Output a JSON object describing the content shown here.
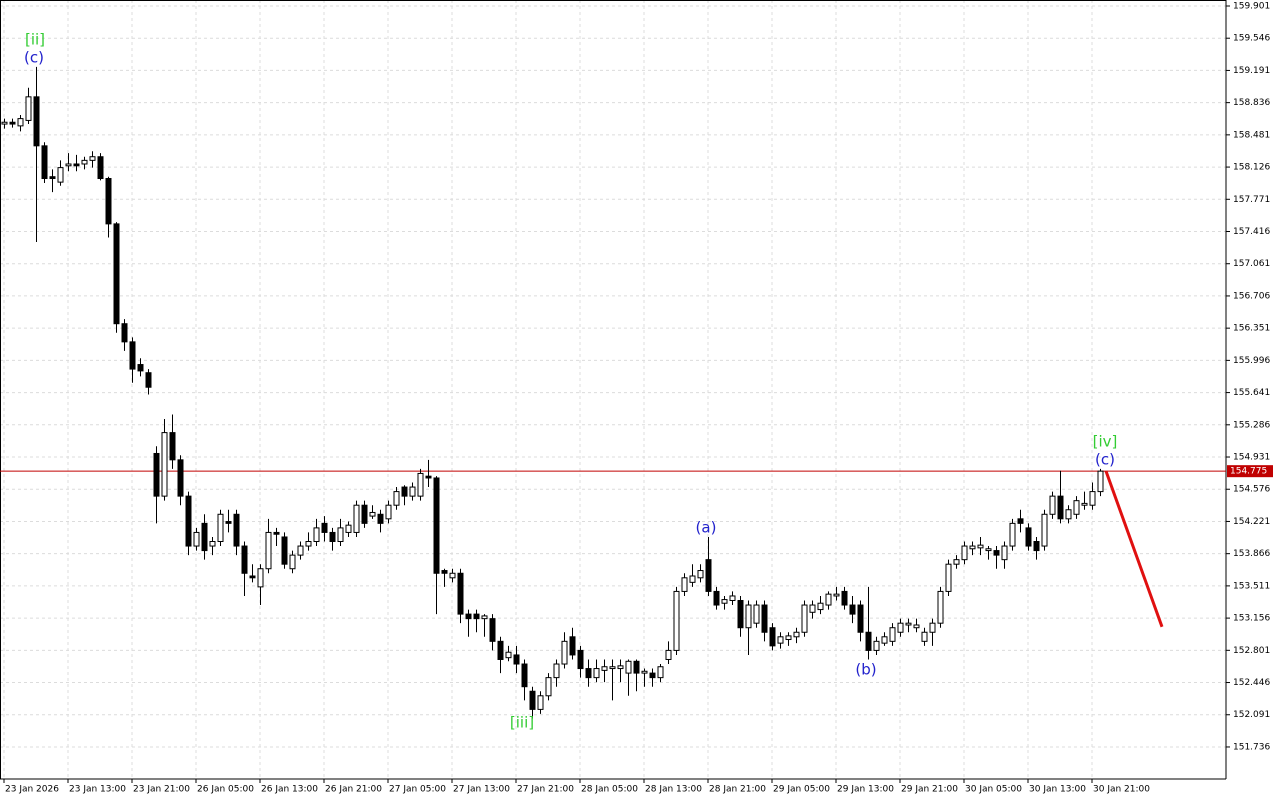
{
  "chart_data": {
    "type": "candlestick",
    "categories": [
      "23 Jan 2026",
      null,
      null,
      null,
      null,
      null,
      null,
      null,
      "23 Jan 13:00",
      null,
      null,
      null,
      null,
      null,
      null,
      null,
      "23 Jan 21:00",
      null,
      null,
      null,
      null,
      null,
      null,
      null,
      "26 Jan 05:00",
      null,
      null,
      null,
      null,
      null,
      null,
      null,
      "26 Jan 13:00",
      null,
      null,
      null,
      null,
      null,
      null,
      null,
      "26 Jan 21:00",
      null,
      null,
      null,
      null,
      null,
      null,
      null,
      "27 Jan 05:00",
      null,
      null,
      null,
      null,
      null,
      null,
      null,
      "27 Jan 13:00",
      null,
      null,
      null,
      null,
      null,
      null,
      null,
      "27 Jan 21:00",
      null,
      null,
      null,
      null,
      null,
      null,
      null,
      "28 Jan 05:00",
      null,
      null,
      null,
      null,
      null,
      null,
      null,
      "28 Jan 13:00",
      null,
      null,
      null,
      null,
      null,
      null,
      null,
      "28 Jan 21:00",
      null,
      null,
      null,
      null,
      null,
      null,
      null,
      "29 Jan 05:00",
      null,
      null,
      null,
      null,
      null,
      null,
      null,
      "29 Jan 13:00",
      null,
      null,
      null,
      null,
      null,
      null,
      null,
      "29 Jan 21:00",
      null,
      null,
      null,
      null,
      null,
      null,
      null,
      "30 Jan 05:00",
      null,
      null,
      null,
      null,
      null,
      null,
      null,
      "30 Jan 13:00",
      null,
      null,
      null,
      null,
      null,
      null,
      null,
      "30 Jan 21:00",
      null
    ],
    "ohlc": [
      [
        158.6,
        158.66,
        158.55,
        158.62
      ],
      [
        158.62,
        158.66,
        158.56,
        158.6
      ],
      [
        158.58,
        158.7,
        158.52,
        158.66
      ],
      [
        158.64,
        159.0,
        158.6,
        158.9
      ],
      [
        158.9,
        159.23,
        157.3,
        158.36
      ],
      [
        158.36,
        158.4,
        157.95,
        158.0
      ],
      [
        158.02,
        158.1,
        157.85,
        158.0
      ],
      [
        157.96,
        158.2,
        157.92,
        158.12
      ],
      [
        158.14,
        158.28,
        158.08,
        158.16
      ],
      [
        158.16,
        158.26,
        158.08,
        158.14
      ],
      [
        158.16,
        158.24,
        158.1,
        158.2
      ],
      [
        158.2,
        158.3,
        158.12,
        158.24
      ],
      [
        158.24,
        158.28,
        157.98,
        158.0
      ],
      [
        158.0,
        158.02,
        157.35,
        157.5
      ],
      [
        157.5,
        157.52,
        156.3,
        156.4
      ],
      [
        156.4,
        156.45,
        156.1,
        156.2
      ],
      [
        156.2,
        156.25,
        155.75,
        155.9
      ],
      [
        155.95,
        156.02,
        155.82,
        155.88
      ],
      [
        155.86,
        155.9,
        155.62,
        155.7
      ],
      [
        154.97,
        155.05,
        154.2,
        154.5
      ],
      [
        154.5,
        155.35,
        154.45,
        155.2
      ],
      [
        155.2,
        155.4,
        154.8,
        154.9
      ],
      [
        154.9,
        154.95,
        154.4,
        154.5
      ],
      [
        154.5,
        154.55,
        153.85,
        153.95
      ],
      [
        153.95,
        154.15,
        153.9,
        154.1
      ],
      [
        154.2,
        154.3,
        153.8,
        153.9
      ],
      [
        153.95,
        154.05,
        153.85,
        154.0
      ],
      [
        154.0,
        154.35,
        153.95,
        154.3
      ],
      [
        154.22,
        154.35,
        154.1,
        154.2
      ],
      [
        154.3,
        154.35,
        153.85,
        153.95
      ],
      [
        153.95,
        154.0,
        153.4,
        153.65
      ],
      [
        153.62,
        153.75,
        153.55,
        153.6
      ],
      [
        153.5,
        153.75,
        153.3,
        153.7
      ],
      [
        153.7,
        154.25,
        153.65,
        154.1
      ],
      [
        154.1,
        154.15,
        153.95,
        154.08
      ],
      [
        154.05,
        154.1,
        153.7,
        153.75
      ],
      [
        153.7,
        153.9,
        153.65,
        153.85
      ],
      [
        153.85,
        154.0,
        153.8,
        153.95
      ],
      [
        153.95,
        154.1,
        153.9,
        154.0
      ],
      [
        154.0,
        154.25,
        153.95,
        154.15
      ],
      [
        154.2,
        154.28,
        154.0,
        154.1
      ],
      [
        154.1,
        154.15,
        153.9,
        154.0
      ],
      [
        154.0,
        154.25,
        153.95,
        154.15
      ],
      [
        154.1,
        154.22,
        154.05,
        154.18
      ],
      [
        154.1,
        154.45,
        154.05,
        154.4
      ],
      [
        154.4,
        154.45,
        154.15,
        154.2
      ],
      [
        154.28,
        154.4,
        154.25,
        154.32
      ],
      [
        154.3,
        154.35,
        154.1,
        154.2
      ],
      [
        154.25,
        154.45,
        154.2,
        154.4
      ],
      [
        154.4,
        154.6,
        154.35,
        154.55
      ],
      [
        154.6,
        154.62,
        154.4,
        154.5
      ],
      [
        154.5,
        154.65,
        154.45,
        154.6
      ],
      [
        154.5,
        154.8,
        154.45,
        154.75
      ],
      [
        154.72,
        154.9,
        154.6,
        154.7
      ],
      [
        154.7,
        154.72,
        153.2,
        153.65
      ],
      [
        153.68,
        153.7,
        153.5,
        153.65
      ],
      [
        153.6,
        153.7,
        153.55,
        153.65
      ],
      [
        153.65,
        153.7,
        153.1,
        153.2
      ],
      [
        153.2,
        153.25,
        152.95,
        153.15
      ],
      [
        153.2,
        153.25,
        153.0,
        153.15
      ],
      [
        153.15,
        153.2,
        152.95,
        153.18
      ],
      [
        153.15,
        153.2,
        152.8,
        152.9
      ],
      [
        152.9,
        152.95,
        152.55,
        152.7
      ],
      [
        152.72,
        152.85,
        152.68,
        152.78
      ],
      [
        152.75,
        152.85,
        152.55,
        152.65
      ],
      [
        152.65,
        152.7,
        152.25,
        152.4
      ],
      [
        152.35,
        152.4,
        152.05,
        152.15
      ],
      [
        152.15,
        152.35,
        152.1,
        152.3
      ],
      [
        152.3,
        152.55,
        152.25,
        152.5
      ],
      [
        152.5,
        152.7,
        152.4,
        152.65
      ],
      [
        152.65,
        153.0,
        152.6,
        152.9
      ],
      [
        152.95,
        153.05,
        152.7,
        152.75
      ],
      [
        152.8,
        152.85,
        152.5,
        152.6
      ],
      [
        152.6,
        152.7,
        152.4,
        152.5
      ],
      [
        152.5,
        152.7,
        152.45,
        152.6
      ],
      [
        152.58,
        152.7,
        152.45,
        152.62
      ],
      [
        152.6,
        152.7,
        152.25,
        152.62
      ],
      [
        152.6,
        152.7,
        152.45,
        152.63
      ],
      [
        152.55,
        152.7,
        152.3,
        152.68
      ],
      [
        152.68,
        152.7,
        152.35,
        152.55
      ],
      [
        152.55,
        152.6,
        152.4,
        152.57
      ],
      [
        152.55,
        152.6,
        152.4,
        152.5
      ],
      [
        152.5,
        152.65,
        152.45,
        152.62
      ],
      [
        152.7,
        152.9,
        152.65,
        152.8
      ],
      [
        152.8,
        153.5,
        152.75,
        153.45
      ],
      [
        153.45,
        153.65,
        153.4,
        153.6
      ],
      [
        153.55,
        153.75,
        153.5,
        153.62
      ],
      [
        153.6,
        153.75,
        153.55,
        153.68
      ],
      [
        153.8,
        154.05,
        153.4,
        153.45
      ],
      [
        153.45,
        153.5,
        153.25,
        153.3
      ],
      [
        153.32,
        153.4,
        153.25,
        153.36
      ],
      [
        153.35,
        153.45,
        153.3,
        153.4
      ],
      [
        153.35,
        153.4,
        152.95,
        153.05
      ],
      [
        153.05,
        153.35,
        152.75,
        153.3
      ],
      [
        153.1,
        153.35,
        153.05,
        153.3
      ],
      [
        153.3,
        153.35,
        152.9,
        153.0
      ],
      [
        153.05,
        153.1,
        152.8,
        152.85
      ],
      [
        152.88,
        153.0,
        152.82,
        152.95
      ],
      [
        152.92,
        153.0,
        152.85,
        152.96
      ],
      [
        152.95,
        153.05,
        152.88,
        153.0
      ],
      [
        153.0,
        153.35,
        152.95,
        153.3
      ],
      [
        153.22,
        153.35,
        153.15,
        153.3
      ],
      [
        153.25,
        153.4,
        153.2,
        153.32
      ],
      [
        153.3,
        153.45,
        153.25,
        153.42
      ],
      [
        153.4,
        153.5,
        153.35,
        153.42
      ],
      [
        153.45,
        153.5,
        153.25,
        153.3
      ],
      [
        153.3,
        153.4,
        153.1,
        153.2
      ],
      [
        153.3,
        153.35,
        152.9,
        153.0
      ],
      [
        153.0,
        153.5,
        152.7,
        152.8
      ],
      [
        152.8,
        152.95,
        152.75,
        152.9
      ],
      [
        152.88,
        153.0,
        152.85,
        152.95
      ],
      [
        152.9,
        153.1,
        152.85,
        153.05
      ],
      [
        153.0,
        153.15,
        152.95,
        153.1
      ],
      [
        153.08,
        153.15,
        153.0,
        153.1
      ],
      [
        153.05,
        153.15,
        153.0,
        153.08
      ],
      [
        152.9,
        153.05,
        152.85,
        153.0
      ],
      [
        153.0,
        153.15,
        152.85,
        153.1
      ],
      [
        153.1,
        153.5,
        153.05,
        153.45
      ],
      [
        153.45,
        153.8,
        153.4,
        153.75
      ],
      [
        153.75,
        153.85,
        153.7,
        153.8
      ],
      [
        153.8,
        154.0,
        153.75,
        153.95
      ],
      [
        153.92,
        154.0,
        153.85,
        153.95
      ],
      [
        153.93,
        154.05,
        153.85,
        153.96
      ],
      [
        153.9,
        153.95,
        153.8,
        153.92
      ],
      [
        153.9,
        153.95,
        153.7,
        153.85
      ],
      [
        153.8,
        154.0,
        153.7,
        153.95
      ],
      [
        153.95,
        154.25,
        153.9,
        154.2
      ],
      [
        154.25,
        154.35,
        154.1,
        154.2
      ],
      [
        154.15,
        154.2,
        153.9,
        153.95
      ],
      [
        154.0,
        154.05,
        153.8,
        153.9
      ],
      [
        153.95,
        154.35,
        153.9,
        154.3
      ],
      [
        154.3,
        154.55,
        154.25,
        154.5
      ],
      [
        154.5,
        154.78,
        154.2,
        154.25
      ],
      [
        154.25,
        154.4,
        154.2,
        154.35
      ],
      [
        154.3,
        154.5,
        154.25,
        154.45
      ],
      [
        154.4,
        154.55,
        154.35,
        154.42
      ],
      [
        154.4,
        154.65,
        154.35,
        154.55
      ],
      [
        154.55,
        154.8,
        154.5,
        154.775
      ]
    ],
    "ylim": [
      151.383,
      159.967
    ],
    "yticks": [
      159.901,
      159.546,
      159.191,
      158.836,
      158.481,
      158.126,
      157.771,
      157.416,
      157.061,
      156.706,
      156.351,
      155.996,
      155.641,
      155.286,
      154.931,
      154.576,
      154.221,
      153.866,
      153.511,
      153.156,
      152.801,
      152.446,
      152.091,
      151.736
    ],
    "grid": true,
    "price_line": {
      "value": 154.775,
      "color": "#c00000"
    },
    "forecast": {
      "color": "#e01010",
      "values": [
        154.775,
        153.06
      ]
    },
    "annotations": [
      {
        "text": "[ii]",
        "color": "#33cc33"
      },
      {
        "text": "(c)",
        "color": "#2222cc"
      },
      {
        "text": "(a)",
        "color": "#2222cc"
      },
      {
        "text": "(b)",
        "color": "#2222cc"
      },
      {
        "text": "[iii]",
        "color": "#33cc33"
      },
      {
        "text": "[iv]",
        "color": "#33cc33"
      },
      {
        "text": "(c)",
        "color": "#2222cc"
      }
    ]
  }
}
